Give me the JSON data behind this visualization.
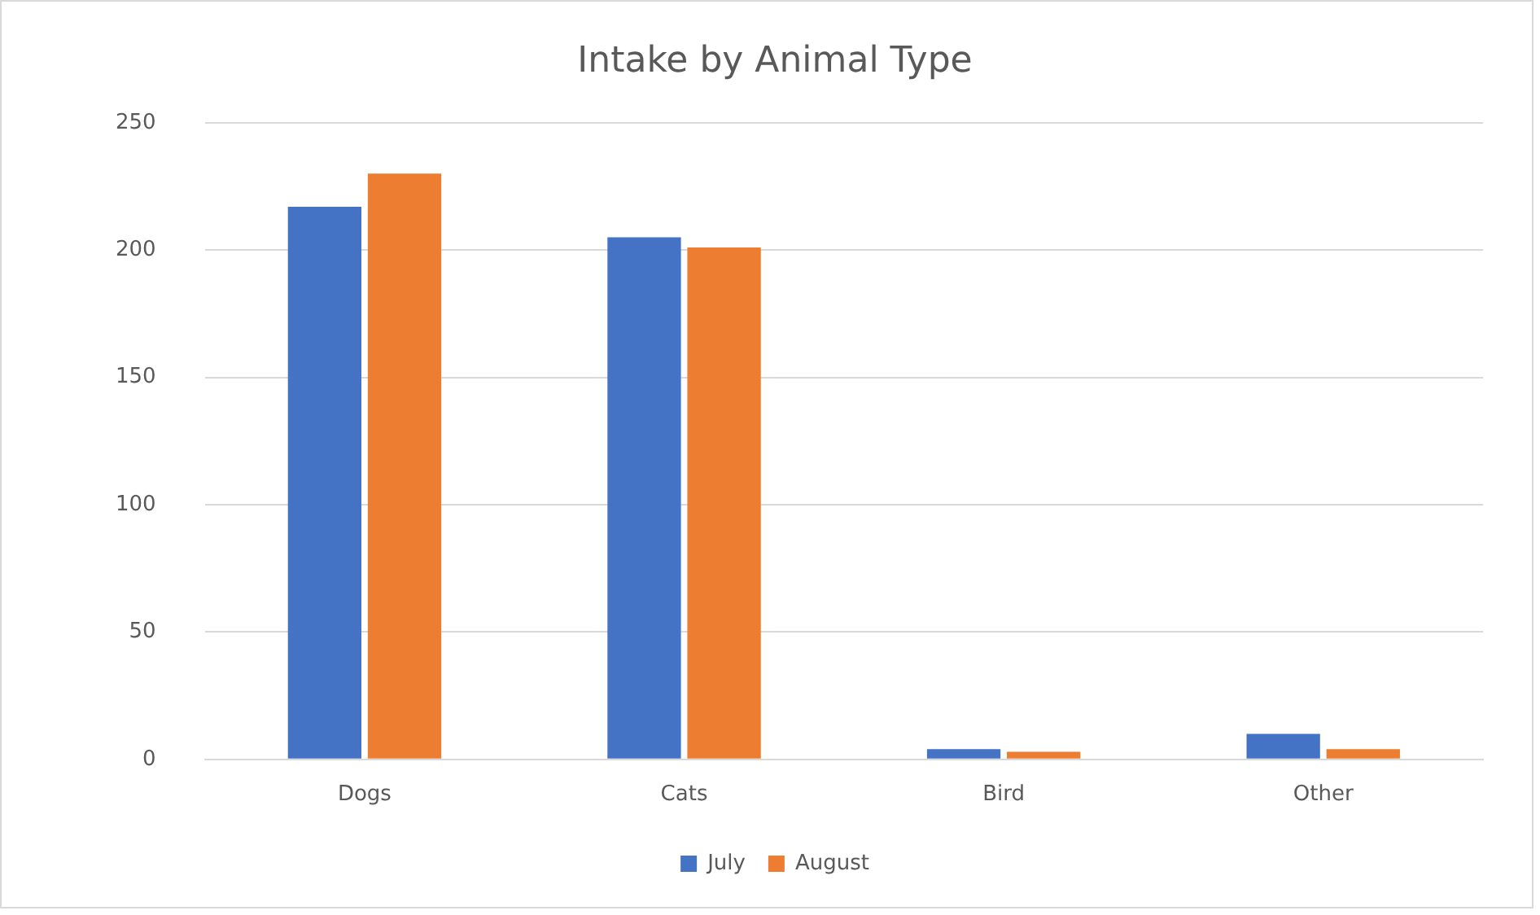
{
  "chart_data": {
    "type": "bar",
    "title": "Intake by Animal Type",
    "categories": [
      "Dogs",
      "Cats",
      "Bird",
      "Other"
    ],
    "series": [
      {
        "name": "July",
        "color": "#4472c4",
        "values": [
          217,
          205,
          4,
          10
        ]
      },
      {
        "name": "August",
        "color": "#ed7d31",
        "values": [
          230,
          201,
          3,
          4
        ]
      }
    ],
    "ylim": [
      0,
      250
    ],
    "yticks": [
      0,
      50,
      100,
      150,
      200,
      250
    ],
    "grid": "y",
    "legend": "bottom"
  }
}
